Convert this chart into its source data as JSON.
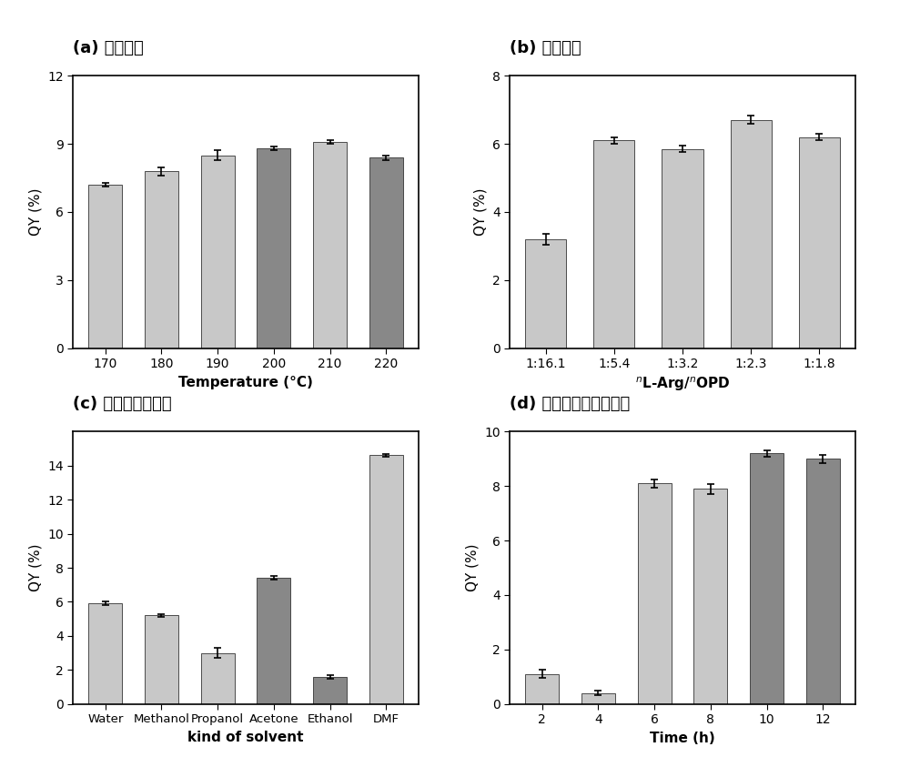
{
  "a": {
    "title": "(a) 温度考察",
    "categories": [
      "170",
      "180",
      "190",
      "200",
      "210",
      "220"
    ],
    "values": [
      7.2,
      7.8,
      8.5,
      8.8,
      9.1,
      8.4
    ],
    "errors": [
      0.08,
      0.18,
      0.22,
      0.08,
      0.08,
      0.1
    ],
    "colors": [
      "#c8c8c8",
      "#c8c8c8",
      "#c8c8c8",
      "#888888",
      "#c8c8c8",
      "#888888"
    ],
    "xlabel": "Temperature (°C)",
    "ylabel": "QY (%)",
    "ylim": [
      0,
      12
    ],
    "yticks": [
      0,
      3,
      6,
      9,
      12
    ]
  },
  "b": {
    "title": "(b) 配比考察",
    "categories": [
      "1:16.1",
      "1:5.4",
      "1:3.2",
      "1:2.3",
      "1:1.8"
    ],
    "values": [
      3.2,
      6.1,
      5.85,
      6.7,
      6.2
    ],
    "errors": [
      0.15,
      0.1,
      0.1,
      0.12,
      0.1
    ],
    "colors": [
      "#c8c8c8",
      "#c8c8c8",
      "#c8c8c8",
      "#c8c8c8",
      "#c8c8c8"
    ],
    "xlabel": "$^{n}$L-Arg/$^{n}$OPD",
    "ylabel": "QY (%)",
    "ylim": [
      0,
      8
    ],
    "yticks": [
      0,
      2,
      4,
      6,
      8
    ]
  },
  "c": {
    "title": "(c) 精氨酸溶剂考察",
    "categories": [
      "Water",
      "Methanol",
      "Propanol",
      "Acetone",
      "Ethanol",
      "DMF"
    ],
    "values": [
      5.9,
      5.2,
      3.0,
      7.4,
      1.6,
      14.6
    ],
    "errors": [
      0.1,
      0.1,
      0.3,
      0.12,
      0.1,
      0.1
    ],
    "colors": [
      "#c8c8c8",
      "#c8c8c8",
      "#c8c8c8",
      "#888888",
      "#888888",
      "#c8c8c8"
    ],
    "xlabel": "kind of solvent",
    "ylabel": "QY (%)",
    "ylim": [
      0,
      16
    ],
    "yticks": [
      0,
      2,
      4,
      6,
      8,
      10,
      12,
      14
    ]
  },
  "d": {
    "title": "(d) 精氨酸制备时间考察",
    "categories": [
      "2",
      "4",
      "6",
      "8",
      "10",
      "12"
    ],
    "values": [
      1.1,
      0.4,
      8.1,
      7.9,
      9.2,
      9.0
    ],
    "errors": [
      0.15,
      0.08,
      0.15,
      0.18,
      0.12,
      0.15
    ],
    "colors": [
      "#c8c8c8",
      "#c8c8c8",
      "#c8c8c8",
      "#c8c8c8",
      "#888888",
      "#888888"
    ],
    "xlabel": "Time (h)",
    "ylabel": "QY (%)",
    "ylim": [
      0,
      10
    ],
    "yticks": [
      0,
      2,
      4,
      6,
      8,
      10
    ]
  },
  "background_color": "#ffffff",
  "bar_edge_color": "#333333",
  "error_color": "#000000",
  "title_fontsize": 13,
  "label_fontsize": 11,
  "tick_fontsize": 10
}
